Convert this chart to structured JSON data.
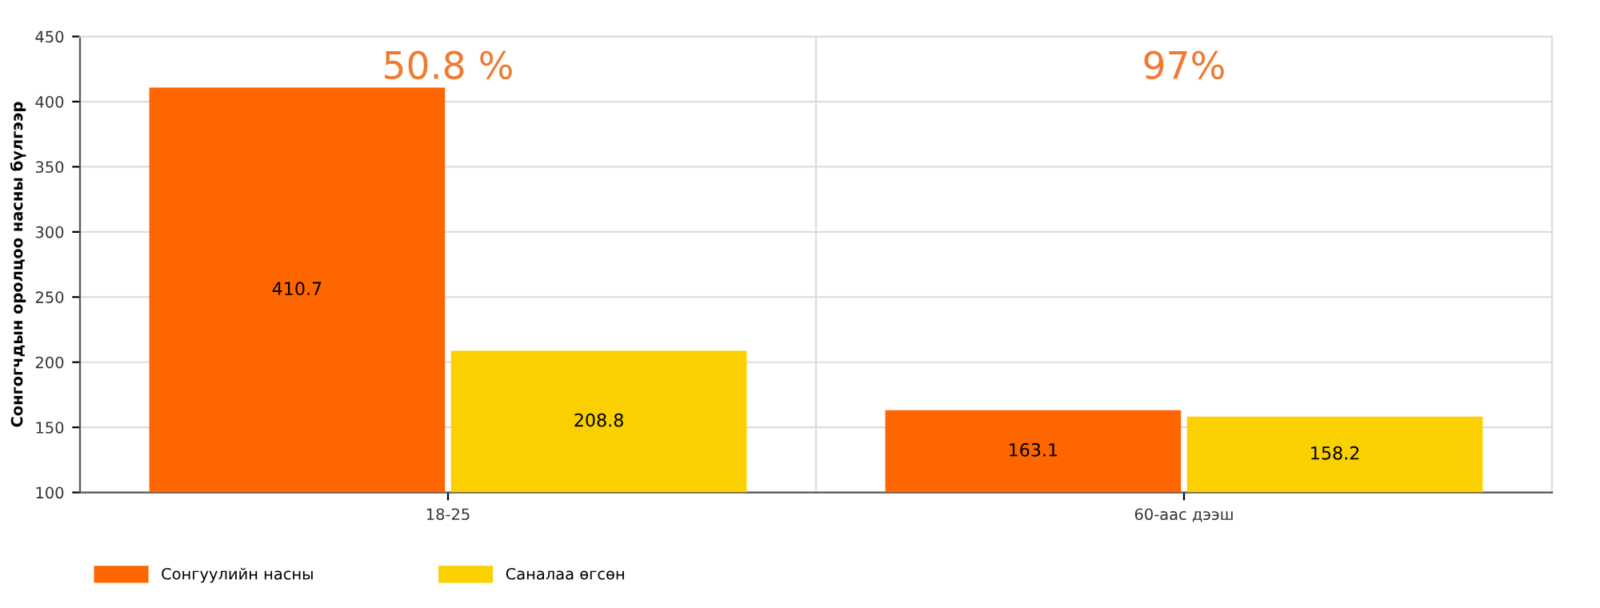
{
  "chart_data": {
    "type": "bar",
    "ylabel": "Сонгогчдын оролцоо насны бүлгээр",
    "categories": [
      "18-25",
      "60-аас дээш"
    ],
    "series": [
      {
        "name": "Сонгуулийн насны",
        "color": "#ff6600",
        "values": [
          410.7,
          163.1
        ]
      },
      {
        "name": "Саналаа өгсөн",
        "color": "#fad000",
        "values": [
          208.8,
          158.2
        ]
      }
    ],
    "ylim": [
      100,
      450
    ],
    "yticks": [
      100,
      150,
      200,
      250,
      300,
      350,
      400,
      450
    ],
    "grid": "y",
    "legend": "bottom left",
    "data_labels": true,
    "annotations": [
      "50.8 %",
      "97%"
    ]
  }
}
